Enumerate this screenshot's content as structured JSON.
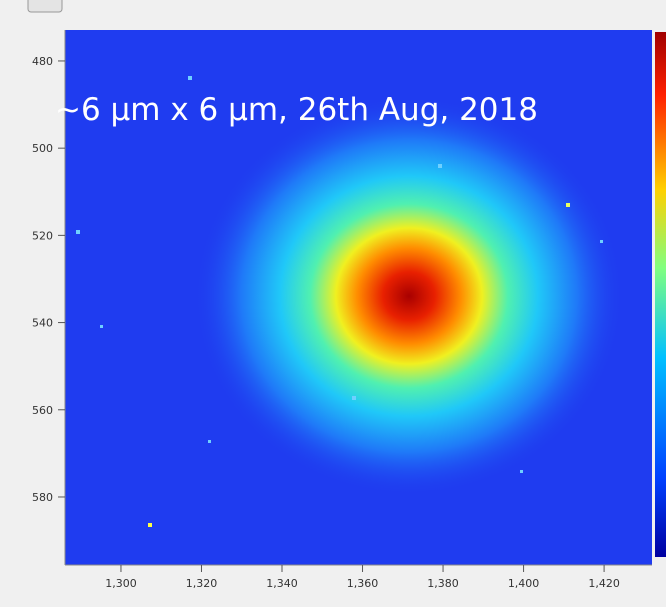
{
  "chart_data": {
    "type": "heatmap",
    "annotation": "~6 µm x 6 µm, 26th Aug, 2018",
    "xlim": [
      1286.1,
      1431.9
    ],
    "xticks": [
      {
        "value": 1300,
        "label": "1,300"
      },
      {
        "value": 1320,
        "label": "1,320"
      },
      {
        "value": 1340,
        "label": "1,340"
      },
      {
        "value": 1360,
        "label": "1,360"
      },
      {
        "value": 1380,
        "label": "1,380"
      },
      {
        "value": 1400,
        "label": "1,400"
      },
      {
        "value": 1420,
        "label": "1,420"
      }
    ],
    "ylim": [
      472.9,
      595.6
    ],
    "yticks": [
      480,
      500,
      520,
      540,
      560,
      580
    ]
  }
}
